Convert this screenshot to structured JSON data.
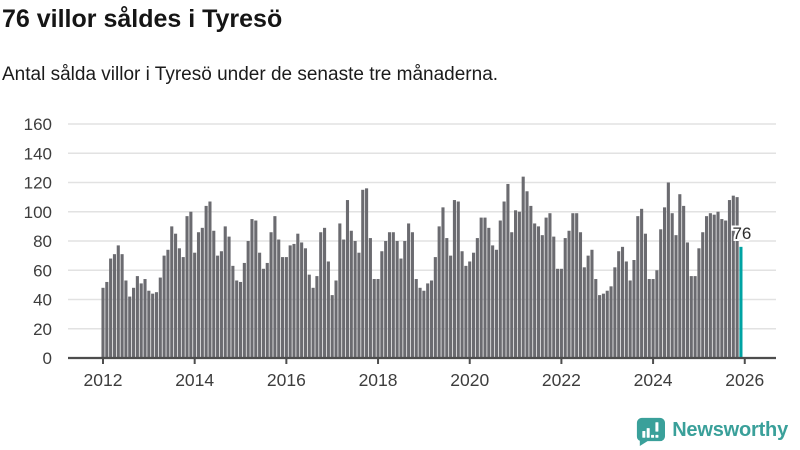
{
  "header": {
    "title": "76 villor såldes i Tyresö",
    "subtitle": "Antal sålda villor i Tyresö under de senaste tre månaderna."
  },
  "chart_data": {
    "type": "bar",
    "title": "76 villor såldes i Tyresö",
    "subtitle": "Antal sålda villor i Tyresö under de senaste tre månaderna.",
    "x_unit": "month",
    "x_start": "2012-01",
    "x_end": "2025-12",
    "values": [
      48,
      52,
      68,
      71,
      77,
      71,
      53,
      42,
      48,
      56,
      51,
      54,
      46,
      44,
      45,
      55,
      70,
      74,
      90,
      85,
      75,
      69,
      97,
      100,
      72,
      86,
      89,
      104,
      107,
      87,
      70,
      73,
      90,
      83,
      63,
      53,
      52,
      65,
      80,
      95,
      94,
      72,
      61,
      65,
      86,
      97,
      81,
      69,
      69,
      77,
      78,
      85,
      79,
      75,
      57,
      48,
      56,
      86,
      89,
      66,
      43,
      53,
      92,
      81,
      108,
      87,
      80,
      72,
      115,
      116,
      82,
      54,
      54,
      73,
      80,
      86,
      86,
      80,
      68,
      80,
      92,
      86,
      54,
      48,
      46,
      51,
      53,
      69,
      90,
      103,
      82,
      70,
      108,
      107,
      73,
      63,
      66,
      72,
      82,
      96,
      96,
      89,
      77,
      74,
      94,
      107,
      119,
      86,
      101,
      100,
      124,
      114,
      104,
      92,
      90,
      84,
      96,
      99,
      83,
      61,
      61,
      82,
      87,
      99,
      99,
      86,
      62,
      70,
      74,
      54,
      43,
      44,
      46,
      49,
      62,
      73,
      76,
      66,
      53,
      67,
      97,
      102,
      85,
      54,
      54,
      60,
      88,
      103,
      120,
      99,
      84,
      112,
      104,
      79,
      56,
      56,
      75,
      86,
      97,
      99,
      98,
      100,
      95,
      94,
      108,
      111,
      110,
      76
    ],
    "highlight": {
      "index": 167,
      "value": 76,
      "label": "76",
      "color": "#00a3a3"
    },
    "bar_color": "#6b6b70",
    "ylim": [
      0,
      160
    ],
    "yticks": [
      0,
      20,
      40,
      60,
      80,
      100,
      120,
      140,
      160
    ],
    "xtick_years": [
      2012,
      2014,
      2016,
      2018,
      2020,
      2022,
      2024,
      2026
    ],
    "grid": true,
    "legend": false,
    "gridline_color": "#e2e2e2",
    "axis_color": "#4d4d4d",
    "tick_label_color": "#3d3d3d",
    "value_label_color": "#2e2e2e"
  },
  "footer": {
    "brand": "Newsworthy",
    "brand_color": "#3aa09a",
    "logo_icon": "newsworthy-speech-bubble-chart-icon"
  }
}
